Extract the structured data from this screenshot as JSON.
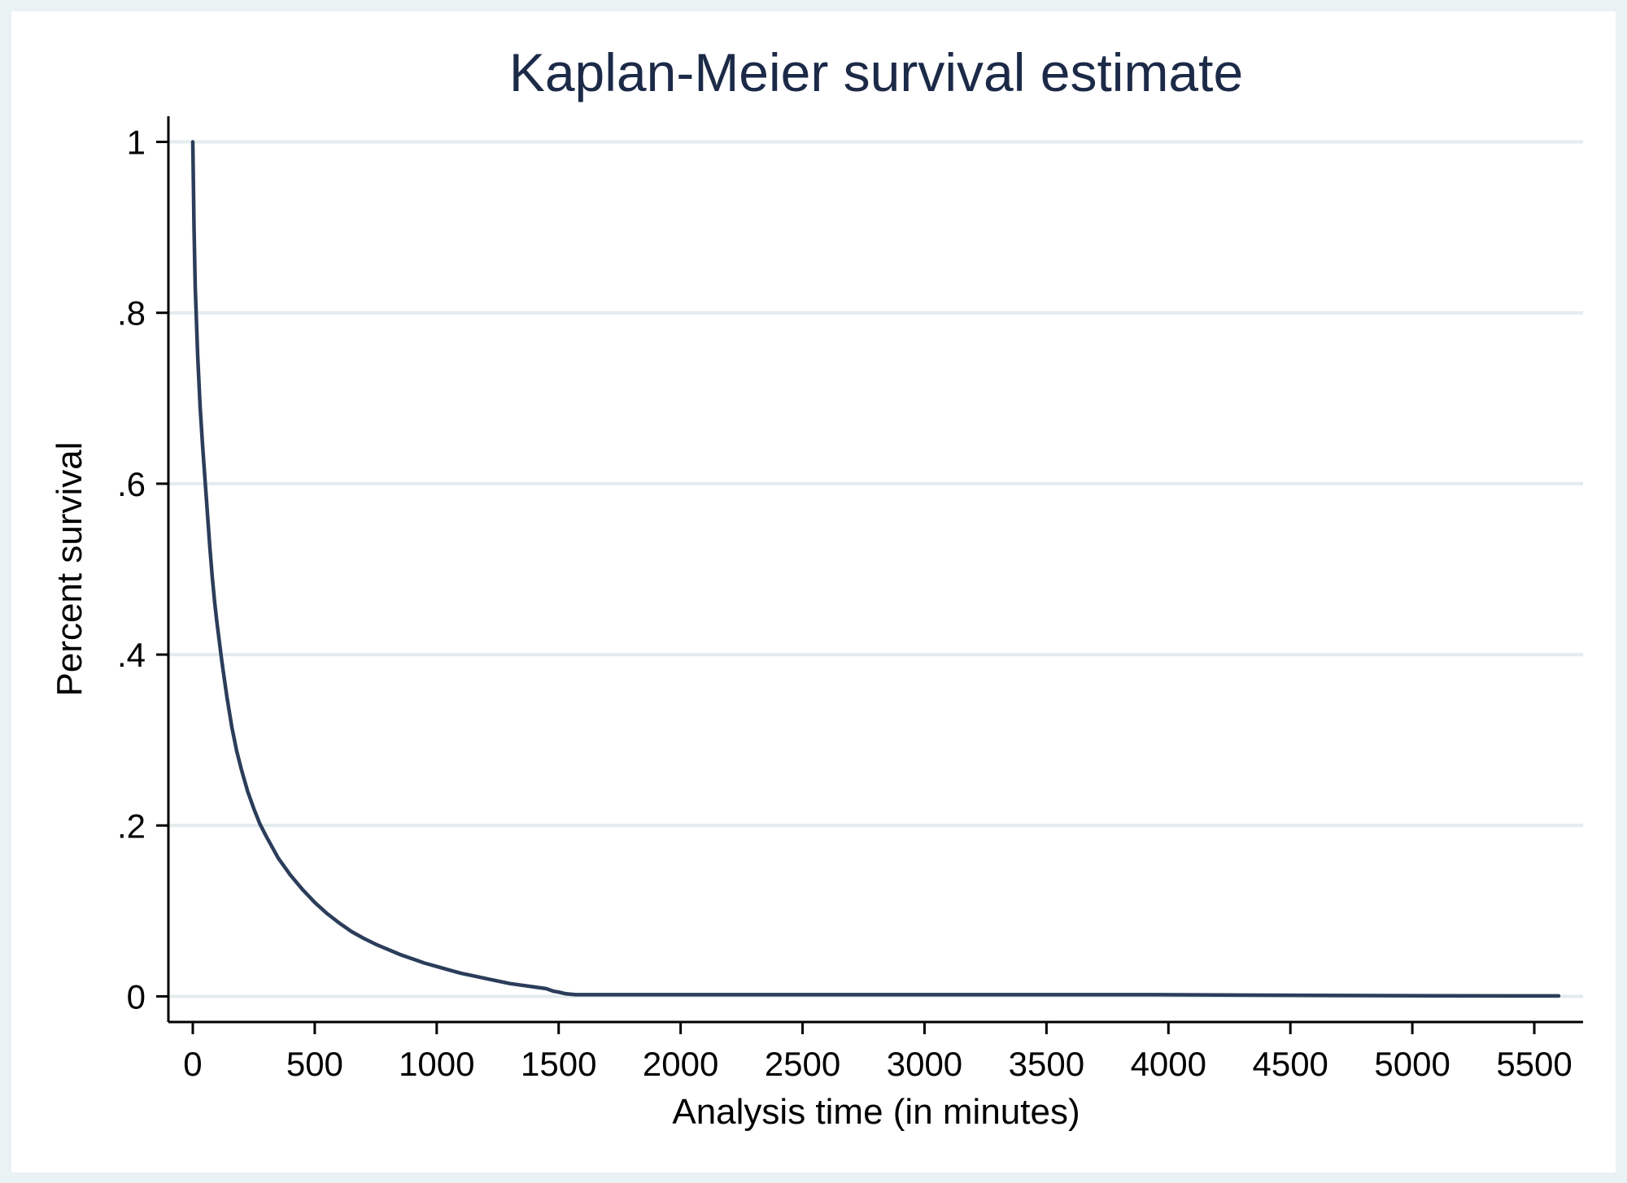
{
  "chart_data": {
    "type": "line",
    "title": "Kaplan-Meier survival estimate",
    "xlabel": "Analysis time (in minutes)",
    "ylabel": "Percent survival",
    "xlim": [
      -100,
      5700
    ],
    "ylim": [
      -0.03,
      1.03
    ],
    "xticks": [
      0,
      500,
      1000,
      1500,
      2000,
      2500,
      3000,
      3500,
      4000,
      4500,
      5000,
      5500
    ],
    "xtick_labels": [
      "0",
      "500",
      "1000",
      "1500",
      "2000",
      "2500",
      "3000",
      "3500",
      "4000",
      "4500",
      "5000",
      "5500"
    ],
    "yticks": [
      0,
      0.2,
      0.4,
      0.6,
      0.8,
      1
    ],
    "ytick_labels": [
      "0",
      ".2",
      ".4",
      ".6",
      ".8",
      "1"
    ],
    "grid": "horizontal",
    "series": [
      {
        "color": "#2b3d5a",
        "x": [
          0,
          5,
          10,
          20,
          30,
          40,
          50,
          60,
          70,
          80,
          90,
          100,
          120,
          140,
          160,
          180,
          200,
          225,
          250,
          275,
          300,
          350,
          400,
          450,
          500,
          550,
          600,
          650,
          700,
          750,
          800,
          850,
          900,
          950,
          1000,
          1050,
          1100,
          1150,
          1200,
          1250,
          1300,
          1350,
          1400,
          1450,
          1480,
          1500,
          1530,
          1570,
          1600,
          1700,
          2000,
          2500,
          3000,
          3500,
          3950,
          4300,
          4700,
          5100,
          5400,
          5600
        ],
        "y": [
          1.0,
          0.9,
          0.83,
          0.75,
          0.69,
          0.645,
          0.605,
          0.565,
          0.525,
          0.49,
          0.46,
          0.435,
          0.39,
          0.35,
          0.315,
          0.287,
          0.265,
          0.24,
          0.22,
          0.202,
          0.188,
          0.162,
          0.142,
          0.125,
          0.11,
          0.097,
          0.086,
          0.076,
          0.068,
          0.061,
          0.055,
          0.049,
          0.044,
          0.039,
          0.035,
          0.031,
          0.027,
          0.024,
          0.021,
          0.018,
          0.015,
          0.013,
          0.011,
          0.009,
          0.006,
          0.005,
          0.003,
          0.002,
          0.002,
          0.002,
          0.002,
          0.002,
          0.002,
          0.002,
          0.002,
          0.0015,
          0.001,
          0.0007,
          0.0005,
          0.0005
        ]
      }
    ]
  }
}
